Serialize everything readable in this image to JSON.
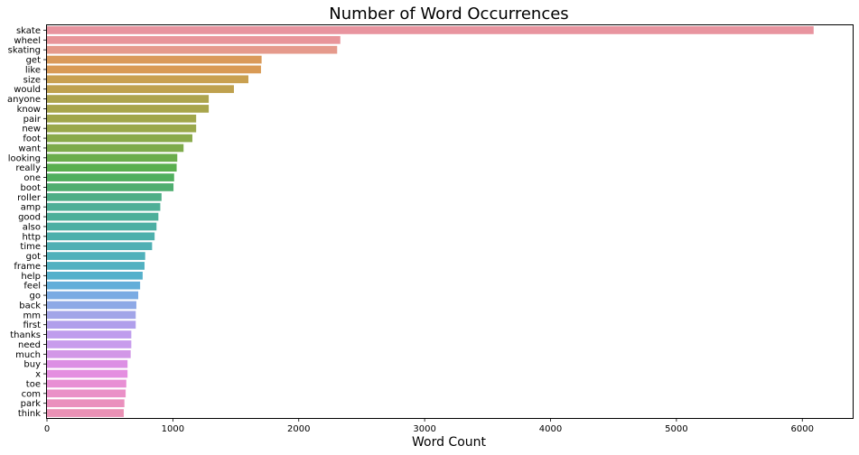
{
  "chart_data": {
    "type": "bar",
    "orientation": "horizontal",
    "title": "Number of Word Occurrences",
    "xlabel": "Word Count",
    "ylabel": "",
    "xlim": [
      0,
      6400
    ],
    "xticks": [
      "0",
      "1000",
      "2000",
      "3000",
      "4000",
      "5000",
      "6000"
    ],
    "grid": false,
    "categories": [
      "skate",
      "wheel",
      "skating",
      "get",
      "like",
      "size",
      "would",
      "anyone",
      "know",
      "pair",
      "new",
      "foot",
      "want",
      "looking",
      "really",
      "one",
      "boot",
      "roller",
      "amp",
      "good",
      "also",
      "http",
      "time",
      "got",
      "frame",
      "help",
      "feel",
      "go",
      "back",
      "mm",
      "first",
      "thanks",
      "need",
      "much",
      "buy",
      "x",
      "toe",
      "com",
      "park",
      "think"
    ],
    "values": [
      6090,
      2330,
      2305,
      1705,
      1700,
      1600,
      1485,
      1285,
      1285,
      1185,
      1185,
      1155,
      1085,
      1035,
      1030,
      1010,
      1005,
      910,
      900,
      885,
      870,
      855,
      835,
      780,
      775,
      760,
      740,
      725,
      710,
      705,
      705,
      670,
      670,
      665,
      640,
      640,
      630,
      625,
      615,
      610
    ],
    "colors": [
      "#e8949f",
      "#e8959a",
      "#e59a8c",
      "#da9a5a",
      "#d99a55",
      "#c9a050",
      "#bfa14e",
      "#ada44e",
      "#a8a54c",
      "#a1a64b",
      "#9aa84b",
      "#8aaa4b",
      "#7eab4c",
      "#6bad4c",
      "#5aaf4f",
      "#50af5e",
      "#4fae70",
      "#4eae87",
      "#4eaf97",
      "#4daf9a",
      "#4dafa3",
      "#4db0ac",
      "#4fb0b4",
      "#50b1bb",
      "#52b1c1",
      "#55b0cb",
      "#62aed9",
      "#7aabe3",
      "#8ea9e6",
      "#a2a5e8",
      "#b09feb",
      "#bf9ded",
      "#c89cec",
      "#d297e7",
      "#dc8fe4",
      "#e48ee0",
      "#e88fd4",
      "#ea90c7",
      "#ea90bd",
      "#ea91b5"
    ]
  }
}
